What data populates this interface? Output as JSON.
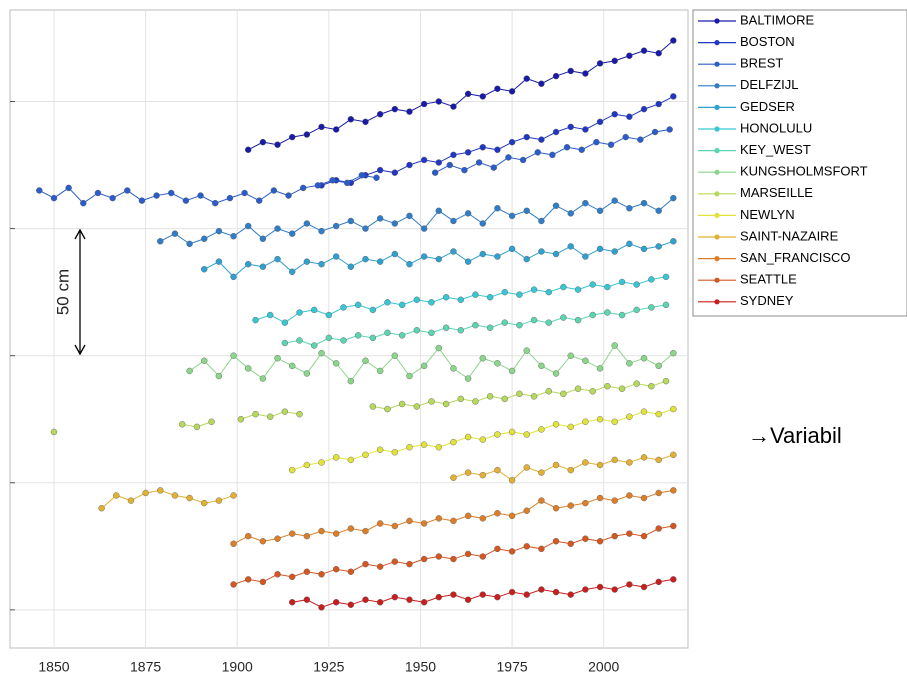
{
  "chart_data": {
    "type": "line",
    "annotation": "50 cm",
    "side_text": "→Variabil",
    "xlim": [
      1838,
      2023
    ],
    "xticks": [
      1850,
      1875,
      1900,
      1925,
      1950,
      1975,
      2000
    ],
    "ylim": [
      -15,
      236
    ],
    "yticks": [
      0,
      50,
      100,
      150,
      200
    ],
    "grid": true,
    "series": [
      {
        "name": "BALTIMORE",
        "color": "#1a1aa8",
        "x": [
          1903,
          1907,
          1911,
          1915,
          1919,
          1923,
          1927,
          1931,
          1935,
          1939,
          1943,
          1947,
          1951,
          1955,
          1959,
          1963,
          1967,
          1971,
          1975,
          1979,
          1983,
          1987,
          1991,
          1995,
          1999,
          2003,
          2007,
          2011,
          2015,
          2019
        ],
        "values": [
          181,
          184,
          183,
          186,
          187,
          190,
          189,
          193,
          192,
          195,
          197,
          196,
          199,
          200,
          198,
          203,
          202,
          205,
          204,
          209,
          207,
          210,
          212,
          211,
          215,
          216,
          218,
          220,
          219,
          224
        ]
      },
      {
        "name": "BOSTON",
        "color": "#2036c4",
        "x": [
          1923,
          1927,
          1931,
          1935,
          1939,
          1943,
          1947,
          1951,
          1955,
          1959,
          1963,
          1967,
          1971,
          1975,
          1979,
          1983,
          1987,
          1991,
          1995,
          1999,
          2003,
          2007,
          2011,
          2015,
          2019
        ],
        "values": [
          167,
          169,
          168,
          171,
          173,
          172,
          175,
          177,
          176,
          179,
          180,
          182,
          181,
          184,
          186,
          185,
          188,
          190,
          189,
          192,
          195,
          194,
          197,
          199,
          202
        ]
      },
      {
        "name": "BREST",
        "color": "#2a5ccc",
        "x": [
          1846,
          1850,
          1854,
          1858,
          1862,
          1866,
          1870,
          1874,
          1878,
          1882,
          1886,
          1890,
          1894,
          1898,
          1902,
          1906,
          1910,
          1914,
          1918,
          1922,
          1926,
          1930,
          1934,
          1938,
          1946,
          1954,
          1958,
          1962,
          1966,
          1970,
          1974,
          1978,
          1982,
          1986,
          1990,
          1994,
          1998,
          2002,
          2006,
          2010,
          2014,
          2018
        ],
        "values": [
          165,
          162,
          166,
          160,
          164,
          162,
          165,
          161,
          163,
          164,
          161,
          163,
          160,
          162,
          164,
          161,
          165,
          163,
          166,
          167,
          169,
          168,
          171,
          170,
          null,
          172,
          175,
          173,
          176,
          174,
          178,
          177,
          180,
          179,
          182,
          181,
          184,
          183,
          186,
          185,
          188,
          189
        ]
      },
      {
        "name": "DELFZIJL",
        "color": "#2f7cc8",
        "x": [
          1879,
          1883,
          1887,
          1891,
          1895,
          1899,
          1903,
          1907,
          1911,
          1915,
          1919,
          1923,
          1927,
          1931,
          1935,
          1939,
          1943,
          1947,
          1951,
          1955,
          1959,
          1963,
          1967,
          1971,
          1975,
          1979,
          1983,
          1987,
          1991,
          1995,
          1999,
          2003,
          2007,
          2011,
          2015,
          2019
        ],
        "values": [
          145,
          148,
          144,
          146,
          149,
          147,
          151,
          146,
          150,
          148,
          152,
          149,
          151,
          153,
          150,
          154,
          152,
          155,
          150,
          157,
          153,
          156,
          152,
          158,
          155,
          157,
          153,
          159,
          156,
          160,
          157,
          161,
          158,
          160,
          157,
          162
        ]
      },
      {
        "name": "GEDSER",
        "color": "#2fa0d0",
        "x": [
          1891,
          1895,
          1899,
          1903,
          1907,
          1911,
          1915,
          1919,
          1923,
          1927,
          1931,
          1935,
          1939,
          1943,
          1947,
          1951,
          1955,
          1959,
          1963,
          1967,
          1971,
          1975,
          1979,
          1983,
          1987,
          1991,
          1995,
          1999,
          2003,
          2007,
          2011,
          2015,
          2019
        ],
        "values": [
          134,
          137,
          131,
          136,
          135,
          138,
          133,
          137,
          136,
          139,
          135,
          138,
          137,
          140,
          136,
          139,
          138,
          141,
          137,
          140,
          139,
          142,
          138,
          141,
          140,
          143,
          139,
          142,
          141,
          144,
          142,
          143,
          145
        ]
      },
      {
        "name": "HONOLULU",
        "color": "#38c6d2",
        "x": [
          1905,
          1909,
          1913,
          1917,
          1921,
          1925,
          1929,
          1933,
          1937,
          1941,
          1945,
          1949,
          1953,
          1957,
          1961,
          1965,
          1969,
          1973,
          1977,
          1981,
          1985,
          1989,
          1993,
          1997,
          2001,
          2005,
          2009,
          2013,
          2017
        ],
        "values": [
          114,
          116,
          113,
          117,
          118,
          116,
          119,
          120,
          118,
          121,
          120,
          122,
          121,
          123,
          122,
          124,
          123,
          125,
          124,
          126,
          125,
          127,
          126,
          128,
          127,
          129,
          128,
          130,
          131
        ]
      },
      {
        "name": "KEY_WEST",
        "color": "#5cd4b2",
        "x": [
          1913,
          1917,
          1921,
          1925,
          1929,
          1933,
          1937,
          1941,
          1945,
          1949,
          1953,
          1957,
          1961,
          1965,
          1969,
          1973,
          1977,
          1981,
          1985,
          1989,
          1993,
          1997,
          2001,
          2005,
          2009,
          2013,
          2017
        ],
        "values": [
          105,
          106,
          104,
          107,
          106,
          108,
          107,
          109,
          108,
          110,
          109,
          111,
          110,
          112,
          111,
          113,
          112,
          114,
          113,
          115,
          114,
          116,
          117,
          116,
          118,
          119,
          120
        ]
      },
      {
        "name": "KUNGSHOLMSFORT",
        "color": "#8ad68a",
        "x": [
          1887,
          1891,
          1895,
          1899,
          1903,
          1907,
          1911,
          1915,
          1919,
          1923,
          1927,
          1931,
          1935,
          1939,
          1943,
          1947,
          1951,
          1955,
          1959,
          1963,
          1967,
          1971,
          1975,
          1979,
          1983,
          1987,
          1991,
          1995,
          1999,
          2003,
          2007,
          2011,
          2015,
          2019
        ],
        "values": [
          94,
          98,
          92,
          100,
          95,
          91,
          99,
          96,
          93,
          101,
          97,
          90,
          98,
          94,
          100,
          92,
          96,
          103,
          95,
          91,
          99,
          97,
          94,
          102,
          96,
          93,
          100,
          98,
          95,
          104,
          97,
          99,
          96,
          101
        ]
      },
      {
        "name": "MARSEILLE",
        "color": "#b6d85c",
        "x": [
          1850,
          1870,
          1885,
          1889,
          1893,
          1897,
          1901,
          1905,
          1909,
          1913,
          1917,
          1925,
          1937,
          1941,
          1945,
          1949,
          1953,
          1957,
          1961,
          1965,
          1969,
          1973,
          1977,
          1981,
          1985,
          1989,
          1993,
          1997,
          2001,
          2005,
          2009,
          2013,
          2017
        ],
        "values": [
          70,
          null,
          73,
          72,
          74,
          null,
          75,
          77,
          76,
          78,
          77,
          null,
          80,
          79,
          81,
          80,
          82,
          81,
          83,
          82,
          84,
          83,
          85,
          84,
          86,
          85,
          87,
          86,
          88,
          87,
          89,
          88,
          90
        ]
      },
      {
        "name": "NEWLYN",
        "color": "#e2e23c",
        "x": [
          1915,
          1919,
          1923,
          1927,
          1931,
          1935,
          1939,
          1943,
          1947,
          1951,
          1955,
          1959,
          1963,
          1967,
          1971,
          1975,
          1979,
          1983,
          1987,
          1991,
          1995,
          1999,
          2003,
          2007,
          2011,
          2015,
          2019
        ],
        "values": [
          55,
          57,
          58,
          60,
          59,
          61,
          63,
          62,
          64,
          65,
          64,
          66,
          68,
          67,
          69,
          70,
          69,
          71,
          73,
          72,
          74,
          75,
          74,
          76,
          78,
          77,
          79
        ]
      },
      {
        "name": "SAINT-NAZAIRE",
        "color": "#e2b032",
        "x": [
          1863,
          1867,
          1871,
          1875,
          1879,
          1883,
          1887,
          1891,
          1895,
          1899,
          1930,
          1959,
          1963,
          1967,
          1971,
          1975,
          1979,
          1983,
          1987,
          1991,
          1995,
          1999,
          2003,
          2007,
          2011,
          2015,
          2019
        ],
        "values": [
          40,
          45,
          43,
          46,
          47,
          45,
          44,
          42,
          43,
          45,
          null,
          52,
          54,
          53,
          55,
          51,
          56,
          54,
          57,
          55,
          58,
          57,
          59,
          58,
          60,
          59,
          61
        ]
      },
      {
        "name": "SAN_FRANCISCO",
        "color": "#dc7e28",
        "x": [
          1899,
          1903,
          1907,
          1911,
          1915,
          1919,
          1923,
          1927,
          1931,
          1935,
          1939,
          1943,
          1947,
          1951,
          1955,
          1959,
          1963,
          1967,
          1971,
          1975,
          1979,
          1983,
          1987,
          1991,
          1995,
          1999,
          2003,
          2007,
          2011,
          2015,
          2019
        ],
        "values": [
          26,
          29,
          27,
          28,
          30,
          29,
          31,
          30,
          32,
          31,
          34,
          33,
          35,
          34,
          36,
          35,
          37,
          36,
          38,
          37,
          39,
          43,
          40,
          41,
          42,
          44,
          43,
          45,
          44,
          46,
          47
        ]
      },
      {
        "name": "SEATTLE",
        "color": "#d45620",
        "x": [
          1899,
          1903,
          1907,
          1911,
          1915,
          1919,
          1923,
          1927,
          1931,
          1935,
          1939,
          1943,
          1947,
          1951,
          1955,
          1959,
          1963,
          1967,
          1971,
          1975,
          1979,
          1983,
          1987,
          1991,
          1995,
          1999,
          2003,
          2007,
          2011,
          2015,
          2019
        ],
        "values": [
          10,
          12,
          11,
          14,
          13,
          15,
          14,
          16,
          15,
          18,
          17,
          19,
          18,
          20,
          21,
          20,
          22,
          21,
          24,
          23,
          25,
          24,
          27,
          26,
          28,
          27,
          29,
          30,
          29,
          32,
          33
        ]
      },
      {
        "name": "SYDNEY",
        "color": "#c81e1e",
        "x": [
          1915,
          1919,
          1923,
          1927,
          1931,
          1935,
          1939,
          1943,
          1947,
          1951,
          1955,
          1959,
          1963,
          1967,
          1971,
          1975,
          1979,
          1983,
          1987,
          1991,
          1995,
          1999,
          2003,
          2007,
          2011,
          2015,
          2019
        ],
        "values": [
          3,
          4,
          1,
          3,
          2,
          4,
          3,
          5,
          4,
          3,
          5,
          6,
          4,
          6,
          5,
          7,
          6,
          8,
          7,
          6,
          8,
          9,
          8,
          10,
          9,
          11,
          12
        ]
      }
    ]
  }
}
